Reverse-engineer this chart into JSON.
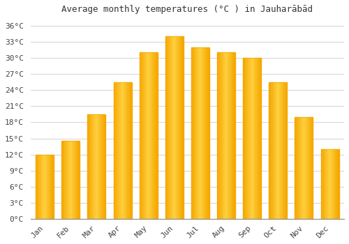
{
  "title": "Average monthly temperatures (°C ) in Jauharābād",
  "months": [
    "Jan",
    "Feb",
    "Mar",
    "Apr",
    "May",
    "Jun",
    "Jul",
    "Aug",
    "Sep",
    "Oct",
    "Nov",
    "Dec"
  ],
  "values": [
    12,
    14.5,
    19.5,
    25.5,
    31,
    34,
    32,
    31,
    30,
    25.5,
    19,
    13
  ],
  "bar_color_outer": "#F5A800",
  "bar_color_inner": "#FFD040",
  "background_color": "#FFFFFF",
  "grid_color": "#CCCCCC",
  "y_ticks": [
    0,
    3,
    6,
    9,
    12,
    15,
    18,
    21,
    24,
    27,
    30,
    33,
    36
  ],
  "ylim": [
    0,
    37.5
  ],
  "title_fontsize": 9,
  "tick_fontsize": 8,
  "bar_width": 0.7
}
